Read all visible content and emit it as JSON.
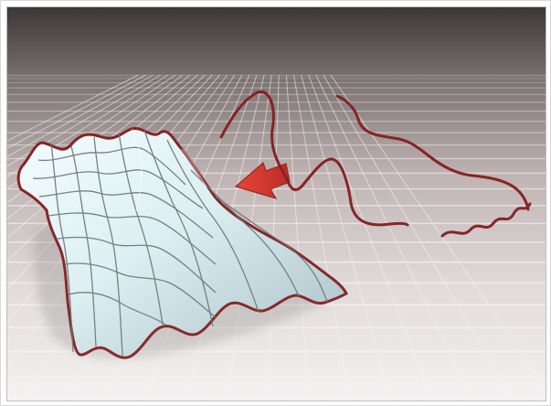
{
  "scene": {
    "type": "3d-render",
    "background_top": "#2f2929",
    "background_mid": "#b8acab",
    "background_bottom": "#f4f1f1",
    "floor_grid_color": "#f7f3f3",
    "surface_color": "#d9eef2",
    "surface_shadow": "#9fb8be",
    "curve_color": "#7b1010",
    "arrow_color": "#d7261d",
    "arrow_direction": "left",
    "curve_count": 3,
    "icons": [
      "surface-mesh-icon",
      "spline-curve-icon",
      "arrow-left-icon"
    ]
  }
}
